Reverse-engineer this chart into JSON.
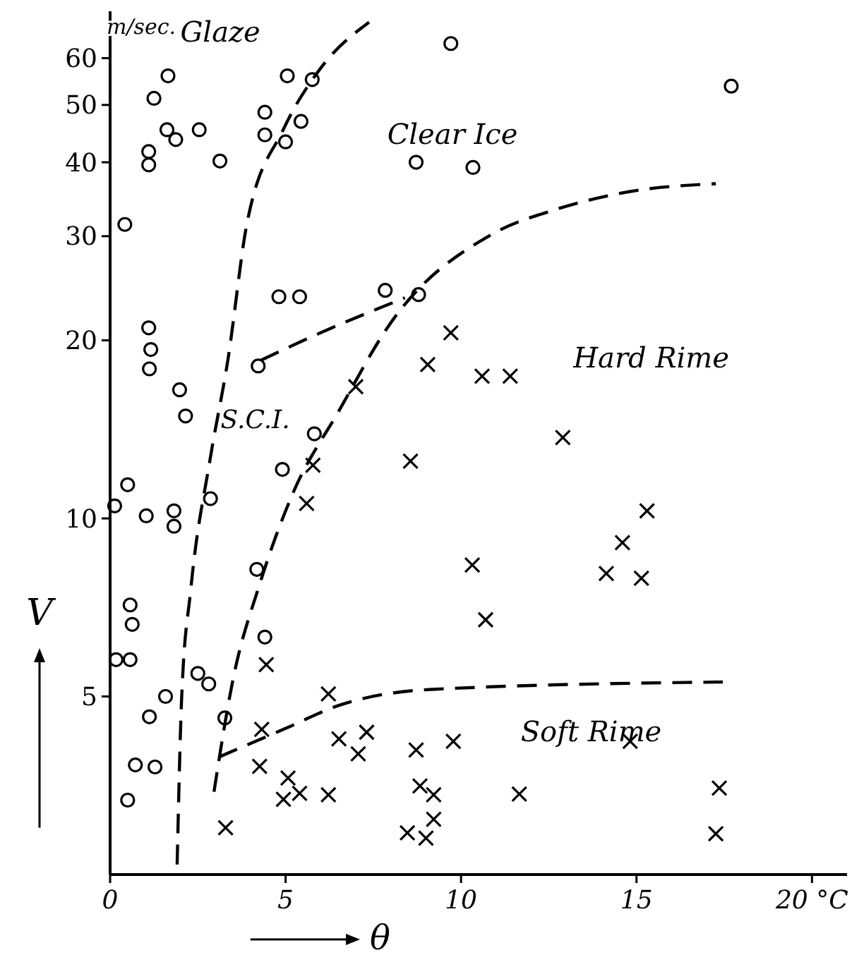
{
  "chart_data": {
    "type": "scatter",
    "xlabel": "θ",
    "ylabel": "V",
    "log": "y",
    "xlim": [
      0,
      21
    ],
    "ylim": [
      2.5,
      72
    ],
    "xticks": [
      0,
      5,
      10,
      15,
      {
        "value": 20,
        "label": "20 °C"
      }
    ],
    "yticks": [
      5,
      10,
      20,
      30,
      40,
      50,
      60
    ],
    "grid": false,
    "annotations": [
      "m/sec.",
      "Glaze",
      "Clear Ice",
      "Hard Rime",
      "S.C.I.",
      "Soft Rime"
    ],
    "series": [
      {
        "marker": "circle",
        "color": "#000000",
        "x": [
          1.65,
          1.25,
          5.05,
          5.76,
          4.41,
          1.62,
          1.87,
          2.54,
          1.1,
          1.1,
          3.13,
          4.41,
          5.0,
          0.42,
          1.1,
          1.16,
          1.12,
          1.98,
          2.15,
          0.13,
          0.5,
          1.03,
          1.82,
          1.82,
          0.57,
          0.63,
          0.17,
          0.57,
          1.12,
          3.27,
          0.72,
          1.28,
          0.5
        ],
        "values": [
          56,
          51.3,
          56,
          55.2,
          48.6,
          45.4,
          43.7,
          45.4,
          41.7,
          39.6,
          40.2,
          44.5,
          43.3,
          31.4,
          21,
          19.3,
          17.9,
          16.5,
          14.9,
          10.5,
          11.4,
          10.1,
          10.3,
          9.7,
          7.14,
          6.62,
          5.77,
          5.77,
          4.62,
          4.6,
          3.83,
          3.8,
          3.34
        ]
      },
      {
        "marker": "circle",
        "color": "#000000",
        "x": [
          9.71,
          5.44,
          8.72,
          10.34,
          4.81,
          5.4,
          7.84,
          8.79,
          17.7
        ],
        "values": [
          63.5,
          46.9,
          40,
          39.2,
          23.7,
          23.7,
          24.3,
          23.9,
          53.8
        ]
      },
      {
        "marker": "circle",
        "color": "#000000",
        "x": [
          4.22,
          5.82,
          4.91,
          2.86,
          4.18,
          4.41,
          2.5,
          2.81,
          1.58
        ],
        "values": [
          18.1,
          13.9,
          12.1,
          10.8,
          8.2,
          6.3,
          5.47,
          5.25,
          5.0
        ]
      },
      {
        "marker": "cross",
        "color": "#000000",
        "x": [
          5.78,
          5.6,
          4.45,
          6.22,
          8.56,
          10.32,
          10.7,
          7.0,
          9.05,
          9.71,
          10.6,
          11.4,
          12.9,
          15.3,
          14.6,
          14.14,
          15.14
        ],
        "values": [
          12.3,
          10.6,
          5.66,
          5.05,
          12.5,
          8.34,
          6.74,
          16.7,
          18.2,
          20.6,
          17.4,
          17.4,
          13.7,
          10.3,
          9.1,
          8.07,
          7.92
        ]
      },
      {
        "marker": "cross",
        "color": "#000000",
        "x": [
          4.32,
          6.52,
          7.31,
          7.07,
          8.72,
          9.78,
          4.26,
          5.07,
          4.94,
          5.4,
          6.22,
          8.83,
          9.22,
          9.22,
          8.47,
          9.0,
          3.29,
          14.82,
          11.66,
          17.36,
          17.26
        ],
        "values": [
          4.4,
          4.24,
          4.35,
          4.0,
          4.06,
          4.2,
          3.81,
          3.64,
          3.35,
          3.43,
          3.41,
          3.53,
          3.41,
          3.1,
          2.94,
          2.88,
          3.0,
          4.2,
          3.42,
          3.5,
          2.93
        ]
      },
      {
        "type": "line",
        "line_style": "dashed",
        "marker": "none",
        "color": "#000000",
        "x": [
          1.91,
          2.04,
          2.3,
          2.85,
          3.36,
          3.89,
          4.94,
          6.0,
          7.38
        ],
        "values": [
          2.6,
          5,
          7.6,
          12.6,
          18.6,
          31.3,
          45.5,
          57.7,
          69
        ]
      },
      {
        "type": "line",
        "line_style": "dashed",
        "marker": "none",
        "color": "#000000",
        "x": [
          2.96,
          3.49,
          4.28,
          5.2,
          6.52,
          7.97,
          10.87,
          12.71,
          14.82,
          17.26
        ],
        "values": [
          3.45,
          5.3,
          7.8,
          11,
          15.2,
          21.3,
          30.2,
          33.3,
          35.7,
          36.8
        ]
      },
      {
        "type": "line",
        "line_style": "dashed",
        "marker": "none",
        "color": "#000000",
        "x": [
          4.29,
          6.0,
          8.4
        ],
        "values": [
          18.5,
          20.6,
          23.6
        ]
      },
      {
        "type": "line",
        "line_style": "dashed",
        "marker": "none",
        "color": "#000000",
        "x": [
          3.1,
          4.94,
          6.52,
          9.16,
          17.46
        ],
        "values": [
          3.95,
          4.4,
          4.83,
          5.14,
          5.29
        ]
      }
    ]
  }
}
